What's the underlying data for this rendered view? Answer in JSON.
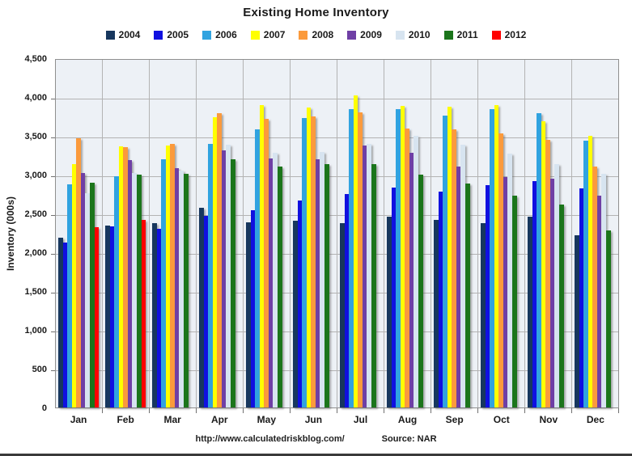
{
  "page": {
    "title": "Existing Home Inventory",
    "footer_url": "http://www.calculatedriskblog.com/",
    "footer_source": "Source: NAR"
  },
  "chart_data": {
    "type": "bar",
    "title": "Existing Home Inventory",
    "xlabel": "",
    "ylabel": "Inventory (000s)",
    "units": "thousands of homes",
    "ylim": [
      0,
      4500
    ],
    "y_tick_step": 500,
    "y_tick_labels": [
      "4,500",
      "4,000",
      "3,500",
      "3,000",
      "2,500",
      "2,000",
      "1,500",
      "1,000",
      "500",
      "0"
    ],
    "grid": true,
    "legend_position": "top",
    "categories": [
      "Jan",
      "Feb",
      "Mar",
      "Apr",
      "May",
      "Jun",
      "Jul",
      "Aug",
      "Sep",
      "Oct",
      "Nov",
      "Dec"
    ],
    "series": [
      {
        "name": "2004",
        "color": "#17375E",
        "values": [
          2200,
          2350,
          2390,
          2580,
          2400,
          2420,
          2390,
          2470,
          2430,
          2390,
          2470,
          2230
        ]
      },
      {
        "name": "2005",
        "color": "#1010E0",
        "values": [
          2140,
          2340,
          2310,
          2480,
          2550,
          2680,
          2760,
          2850,
          2790,
          2880,
          2930,
          2840
        ]
      },
      {
        "name": "2006",
        "color": "#30A3E0",
        "values": [
          2890,
          2990,
          3210,
          3410,
          3600,
          3750,
          3860,
          3860,
          3780,
          3860,
          3810,
          3450
        ]
      },
      {
        "name": "2007",
        "color": "#FFFF00",
        "values": [
          3150,
          3380,
          3390,
          3760,
          3910,
          3880,
          4040,
          3900,
          3890,
          3910,
          3700,
          3520
        ]
      },
      {
        "name": "2008",
        "color": "#FB9A3C",
        "values": [
          3480,
          3370,
          3410,
          3810,
          3740,
          3770,
          3820,
          3610,
          3600,
          3550,
          3460,
          3120
        ]
      },
      {
        "name": "2009",
        "color": "#6F3FA5",
        "values": [
          3030,
          3200,
          3100,
          3330,
          3220,
          3210,
          3390,
          3300,
          3120,
          2980,
          2960,
          2740
        ]
      },
      {
        "name": "2010",
        "color": "#D7E4F0",
        "values": [
          2770,
          3040,
          3070,
          3400,
          3300,
          3310,
          3410,
          3520,
          3400,
          3290,
          3150,
          3020
        ]
      },
      {
        "name": "2011",
        "color": "#1B751B",
        "values": [
          2910,
          3010,
          3020,
          3210,
          3120,
          3150,
          3150,
          3010,
          2900,
          2740,
          2630,
          2290
        ]
      },
      {
        "name": "2012",
        "color": "#FF0000",
        "values": [
          2330,
          2430,
          null,
          null,
          null,
          null,
          null,
          null,
          null,
          null,
          null,
          null
        ]
      }
    ]
  }
}
